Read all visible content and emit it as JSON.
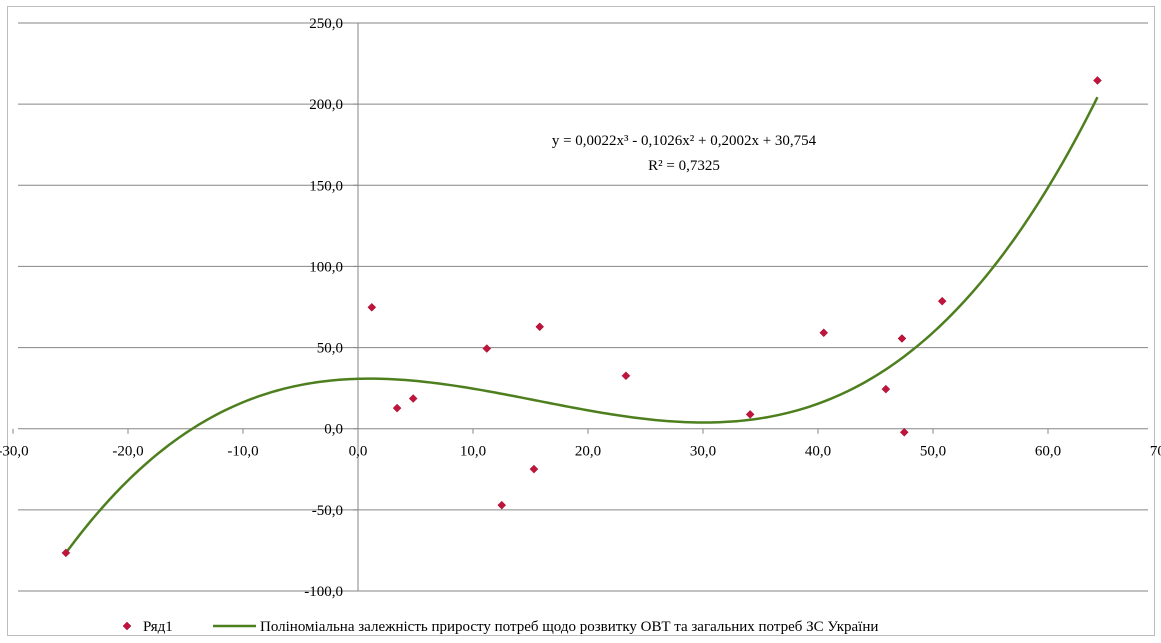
{
  "chart_data": {
    "type": "scatter",
    "title": "",
    "xlabel": "",
    "ylabel": "",
    "xlim": [
      -30,
      70
    ],
    "ylim": [
      -100,
      250
    ],
    "x_ticks": [
      -30,
      -20,
      -10,
      0,
      10,
      20,
      30,
      40,
      50,
      60,
      70
    ],
    "y_ticks": [
      -100,
      -50,
      0,
      50,
      100,
      150,
      200,
      250
    ],
    "x_tick_labels": [
      "-30,0",
      "-20,0",
      "-10,0",
      "0,0",
      "10,0",
      "20,0",
      "30,0",
      "40,0",
      "50,0",
      "60,0",
      "70,0"
    ],
    "y_tick_labels": [
      "-100,0",
      "-50,0",
      "0,0",
      "50,0",
      "100,0",
      "150,0",
      "200,0",
      "250,0"
    ],
    "grid": "horizontal",
    "legend_position": "bottom",
    "series": [
      {
        "name": "Ряд1",
        "color": "#c0143c",
        "marker": "diamond",
        "points": [
          {
            "x": -25.4,
            "y": -76.5
          },
          {
            "x": 1.2,
            "y": 74.8
          },
          {
            "x": 3.4,
            "y": 12.7
          },
          {
            "x": 4.8,
            "y": 18.6
          },
          {
            "x": 11.2,
            "y": 49.4
          },
          {
            "x": 12.5,
            "y": -47.1
          },
          {
            "x": 15.3,
            "y": -24.9
          },
          {
            "x": 15.8,
            "y": 62.8
          },
          {
            "x": 23.3,
            "y": 32.6
          },
          {
            "x": 34.1,
            "y": 8.8
          },
          {
            "x": 40.5,
            "y": 59.1
          },
          {
            "x": 45.9,
            "y": 24.4
          },
          {
            "x": 47.3,
            "y": 55.6
          },
          {
            "x": 47.5,
            "y": -2.2
          },
          {
            "x": 50.8,
            "y": 78.6
          },
          {
            "x": 64.3,
            "y": 214.6
          }
        ]
      },
      {
        "name": "Поліноміальна залежність приросту потреб щодо розвитку ОВТ та загальних потреб ЗС України",
        "type": "trendline-polynomial",
        "color": "#4e7f1e",
        "coefficients": [
          0.0022,
          -0.1026,
          0.2002,
          30.754
        ],
        "x_range": [
          -25.4,
          64.3
        ]
      }
    ],
    "annotations": {
      "equation": "y = 0,0022x³ - 0,1026x² + 0,2002x + 30,754",
      "r_squared": "R² = 0,7325"
    }
  }
}
